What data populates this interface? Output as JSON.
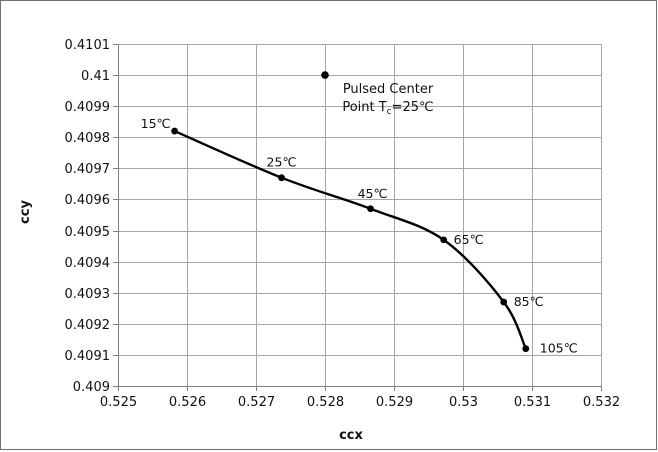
{
  "chart_data": {
    "type": "scatter",
    "xlabel": "ccx",
    "ylabel": "ccy",
    "xlim": [
      0.525,
      0.532
    ],
    "ylim": [
      0.409,
      0.4101
    ],
    "x_ticks": [
      "0.525",
      "0.526",
      "0.527",
      "0.528",
      "0.529",
      "0.53",
      "0.531",
      "0.532"
    ],
    "y_ticks": [
      "0.409",
      "0.4091",
      "0.4092",
      "0.4093",
      "0.4094",
      "0.4095",
      "0.4096",
      "0.4097",
      "0.4098",
      "0.4099",
      "0.41",
      "0.4101"
    ],
    "grid": true,
    "series": [
      {
        "points": [
          {
            "x": 0.52582,
            "y": 0.40982,
            "label": "15℃"
          },
          {
            "x": 0.52737,
            "y": 0.40967,
            "label": "25℃"
          },
          {
            "x": 0.52866,
            "y": 0.40957,
            "label": "45℃"
          },
          {
            "x": 0.52972,
            "y": 0.40947,
            "label": "65℃"
          },
          {
            "x": 0.53059,
            "y": 0.40927,
            "label": "85℃"
          },
          {
            "x": 0.53091,
            "y": 0.40912,
            "label": "105℃"
          }
        ]
      }
    ],
    "center_point": {
      "x": 0.528,
      "y": 0.41,
      "label_line1": "Pulsed Center",
      "label_line2_prefix": "Point T",
      "label_line2_sub": "c",
      "label_line2_suffix": "=25℃"
    }
  }
}
